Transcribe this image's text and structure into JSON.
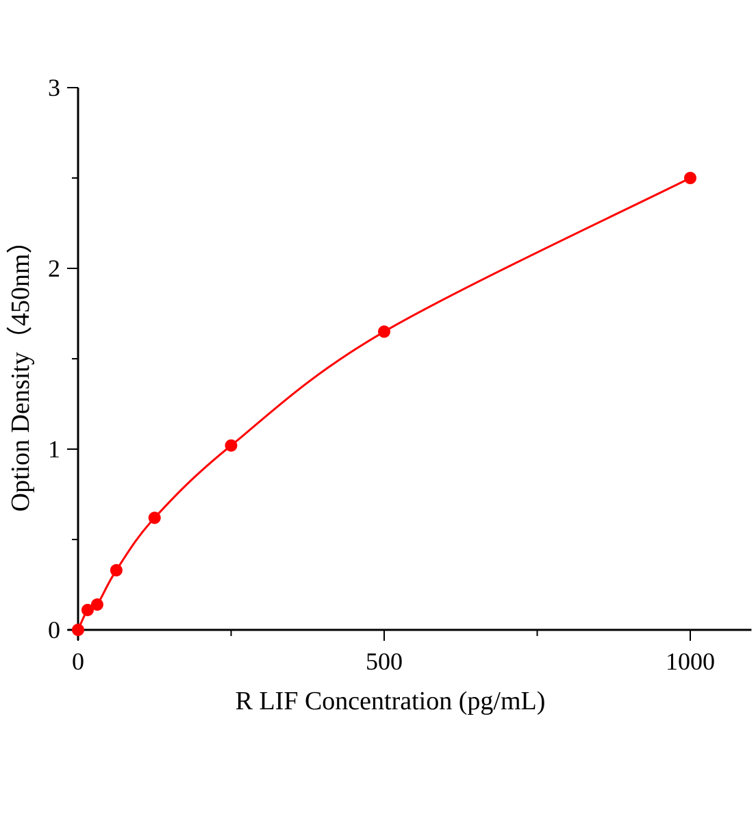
{
  "chart_data": {
    "type": "scatter",
    "title": "",
    "xlabel": "R LIF Concentration (pg/mL)",
    "ylabel": "Option Density（450nm）",
    "xlim": [
      0,
      1100
    ],
    "ylim": [
      0,
      3
    ],
    "x_ticks": [
      0,
      500,
      1000
    ],
    "x_minor_ticks": [
      250,
      750
    ],
    "y_ticks": [
      0,
      1,
      2,
      3
    ],
    "y_minor_ticks": [
      0.5,
      1.5,
      2.5
    ],
    "grid": false,
    "color": "#ff0000",
    "fit_curve": true,
    "series": [
      {
        "x": [
          0,
          15.6,
          31.25,
          62.5,
          125,
          250,
          500,
          1000
        ],
        "y": [
          0.0,
          0.11,
          0.14,
          0.33,
          0.62,
          1.02,
          1.65,
          2.5
        ]
      }
    ]
  }
}
